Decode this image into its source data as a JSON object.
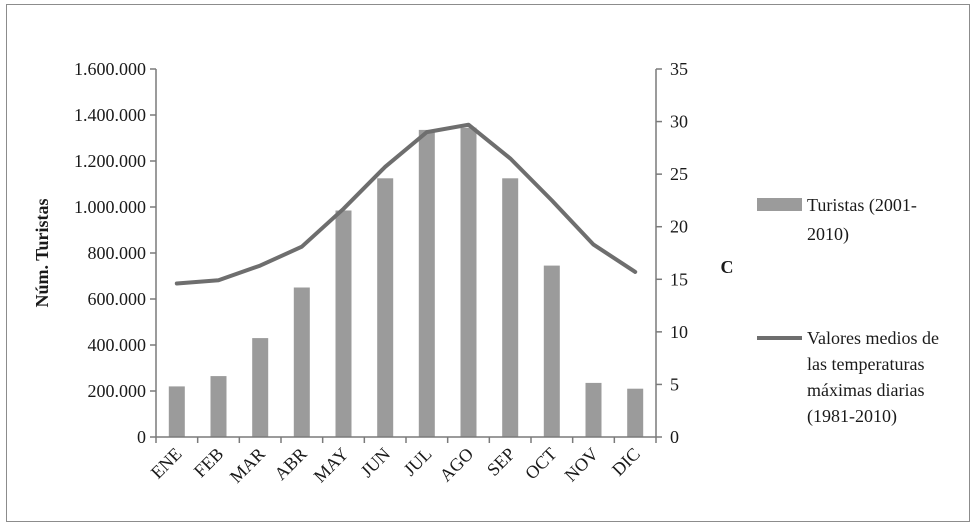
{
  "chart_data": {
    "type": "bar",
    "categories": [
      "ENE",
      "FEB",
      "MAR",
      "ABR",
      "MAY",
      "JUN",
      "JUL",
      "AGO",
      "SEP",
      "OCT",
      "NOV",
      "DIC"
    ],
    "series": [
      {
        "name": "Turistas (2001-2010)",
        "type": "bar",
        "axis": "left",
        "color": "#9b9b9b",
        "values": [
          220000,
          265000,
          430000,
          650000,
          985000,
          1125000,
          1335000,
          1345000,
          1125000,
          745000,
          235000,
          210000
        ]
      },
      {
        "name": "Valores medios de las temperaturas máximas diarias (1981-2010)",
        "type": "line",
        "axis": "right",
        "color": "#6e6e6e",
        "values": [
          14.6,
          14.9,
          16.3,
          18.1,
          21.7,
          25.7,
          29.0,
          29.7,
          26.5,
          22.5,
          18.3,
          15.7
        ]
      }
    ],
    "ylabel": "Núm. Turistas",
    "y2label": "C",
    "ylim": [
      0,
      1600000
    ],
    "y2lim": [
      0,
      35
    ],
    "yticks": [
      "0",
      "200.000",
      "400.000",
      "600.000",
      "800.000",
      "1.000.000",
      "1.200.000",
      "1.400.000",
      "1.600.000"
    ],
    "y2ticks": [
      "0",
      "5",
      "10",
      "15",
      "20",
      "25",
      "30",
      "35"
    ],
    "legend": {
      "position": "right",
      "bar_label_lines": [
        "Turistas (2001-",
        "2010)"
      ],
      "line_label_lines": [
        "Valores medios de",
        "las temperaturas",
        "máximas diarias",
        "(1981-2010)"
      ]
    },
    "grid": false
  }
}
